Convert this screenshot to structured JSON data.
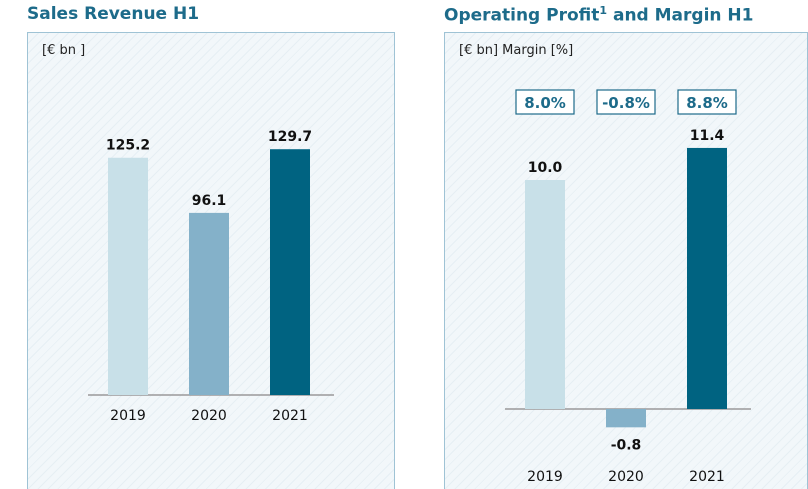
{
  "left_panel": {
    "title": "Sales Revenue H1",
    "unit": "[€ bn ]"
  },
  "right_panel": {
    "title": "Operating Profit",
    "title_superscript": "1",
    "title_suffix": " and Margin H1",
    "unit": "[€ bn] Margin [%]"
  },
  "colors": {
    "title": "#1d6b8a",
    "bar_2019": "#c8e0e8",
    "bar_2020": "#84b1c9",
    "bar_2021": "#006381",
    "axis": "#999999",
    "margin_box_border": "#1d6b8a"
  },
  "chart_data": [
    {
      "type": "bar",
      "title": "Sales Revenue H1",
      "ylabel": "[€ bn ]",
      "categories": [
        "2019",
        "2020",
        "2021"
      ],
      "values": [
        125.2,
        96.1,
        129.7
      ],
      "value_labels": [
        "125.2",
        "96.1",
        "129.7"
      ],
      "ylim": [
        0,
        150
      ],
      "grid": false,
      "legend": "none"
    },
    {
      "type": "bar",
      "title": "Operating Profit1 and Margin H1",
      "ylabel": "[€ bn] Margin [%]",
      "categories": [
        "2019",
        "2020",
        "2021"
      ],
      "values": [
        10.0,
        -0.8,
        11.4
      ],
      "value_labels": [
        "10.0",
        "-0.8",
        "11.4"
      ],
      "margins": [
        "8.0%",
        "-0.8%",
        "8.8%"
      ],
      "ylim": [
        -1.6,
        15
      ],
      "grid": false,
      "legend": "none"
    }
  ]
}
